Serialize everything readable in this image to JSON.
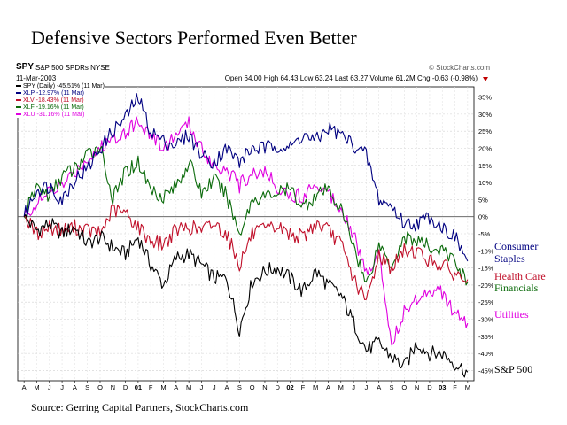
{
  "slide_title": "Defensive Sectors Performed Even Better",
  "source": "Source: Gerring Capital Partners, StockCharts.com",
  "header": {
    "symbol": "SPY",
    "name": "S&P 500 SPDRs  NYSE",
    "site": "© StockCharts.com",
    "date": "11-Mar-2003",
    "open_label": "Open",
    "open": "64.00",
    "high_label": "High",
    "high": "64.43",
    "low_label": "Low",
    "low": "63.24",
    "last_label": "Last",
    "last": "63.27",
    "volume_label": "Volume",
    "volume": "61.2M",
    "chg_label": "Chg",
    "chg": "-0.63 (-0.98%)"
  },
  "colors": {
    "SPY": "#000000",
    "XLP": "#000080",
    "XLV": "#c0102a",
    "XLF": "#0a6a0a",
    "XLU": "#e000e0"
  },
  "chart_data": {
    "type": "line",
    "y_unit": "% change",
    "ylim": [
      -48,
      38
    ],
    "yticks": [
      "35%",
      "30%",
      "25%",
      "20%",
      "15%",
      "10%",
      "5%",
      "0%",
      "-5%",
      "-10%",
      "-15%",
      "-20%",
      "-25%",
      "-30%",
      "-35%",
      "-40%",
      "-45%"
    ],
    "xticks": [
      "A",
      "M",
      "J",
      "J",
      "A",
      "S",
      "O",
      "N",
      "D",
      "01",
      "F",
      "M",
      "A",
      "M",
      "J",
      "J",
      "A",
      "S",
      "O",
      "N",
      "D",
      "02",
      "F",
      "M",
      "A",
      "M",
      "J",
      "J",
      "A",
      "S",
      "O",
      "N",
      "D",
      "03",
      "F",
      "M"
    ],
    "x": [
      "Apr-00",
      "May-00",
      "Jun-00",
      "Jul-00",
      "Aug-00",
      "Sep-00",
      "Oct-00",
      "Nov-00",
      "Dec-00",
      "Jan-01",
      "Feb-01",
      "Mar-01",
      "Apr-01",
      "May-01",
      "Jun-01",
      "Jul-01",
      "Aug-01",
      "Sep-01",
      "Oct-01",
      "Nov-01",
      "Dec-01",
      "Jan-02",
      "Feb-02",
      "Mar-02",
      "Apr-02",
      "May-02",
      "Jun-02",
      "Jul-02",
      "Aug-02",
      "Sep-02",
      "Oct-02",
      "Nov-02",
      "Dec-02",
      "Jan-03",
      "Feb-03",
      "Mar-03"
    ],
    "grid": true,
    "legend_placement": "top-left",
    "series": [
      {
        "key": "SPY",
        "name": "SPY (Daily) -45.51% (11 Mar)",
        "label_right": "S&P 500",
        "values": [
          0,
          -4,
          -2,
          -5,
          -3,
          -8,
          -6,
          -9,
          -11,
          -6,
          -14,
          -20,
          -12,
          -11,
          -14,
          -18,
          -18,
          -33,
          -19,
          -16,
          -15,
          -18,
          -22,
          -16,
          -20,
          -23,
          -31,
          -39,
          -37,
          -41,
          -44,
          -37,
          -40,
          -40,
          -43,
          -45.5
        ]
      },
      {
        "key": "XLP",
        "name": "XLP -12.97% (11 Mar)",
        "label_right": "Consumer Staples",
        "values": [
          0,
          8,
          9,
          5,
          11,
          14,
          20,
          25,
          29,
          35,
          25,
          22,
          21,
          24,
          18,
          16,
          20,
          16,
          20,
          20,
          21,
          20,
          24,
          22,
          26,
          24,
          21,
          18,
          5,
          3,
          -2,
          -2,
          0,
          -3,
          -6,
          -13
        ]
      },
      {
        "key": "XLV",
        "name": "XLV -18.43% (11 Mar)",
        "label_right": "Health Care",
        "values": [
          0,
          -5,
          -3,
          -4,
          -3,
          -4,
          -5,
          2,
          1,
          -3,
          -7,
          -8,
          -4,
          -3,
          -4,
          -2,
          -5,
          -14,
          -5,
          -4,
          -3,
          -5,
          -6,
          -2,
          -4,
          -8,
          -18,
          -25,
          -11,
          -15,
          -10,
          -10,
          -13,
          -14,
          -17,
          -18.4
        ]
      },
      {
        "key": "XLF",
        "name": "XLF -19.16% (11 Mar)",
        "label_right": "Financials",
        "values": [
          0,
          9,
          6,
          12,
          14,
          18,
          21,
          5,
          13,
          16,
          8,
          6,
          9,
          16,
          7,
          11,
          6,
          -5,
          5,
          6,
          7,
          8,
          3,
          6,
          8,
          2,
          -8,
          -20,
          -8,
          -14,
          -6,
          -7,
          -9,
          -10,
          -13,
          -19.2
        ]
      },
      {
        "key": "XLU",
        "name": "XLU -31.16% (11 Mar)",
        "label_right": "Utilities",
        "values": [
          0,
          4,
          7,
          9,
          13,
          17,
          20,
          23,
          25,
          28,
          24,
          20,
          24,
          27,
          20,
          15,
          14,
          9,
          13,
          13,
          9,
          6,
          6,
          10,
          7,
          3,
          -5,
          -17,
          -10,
          -37,
          -28,
          -24,
          -21,
          -22,
          -29,
          -31.2
        ]
      }
    ]
  }
}
